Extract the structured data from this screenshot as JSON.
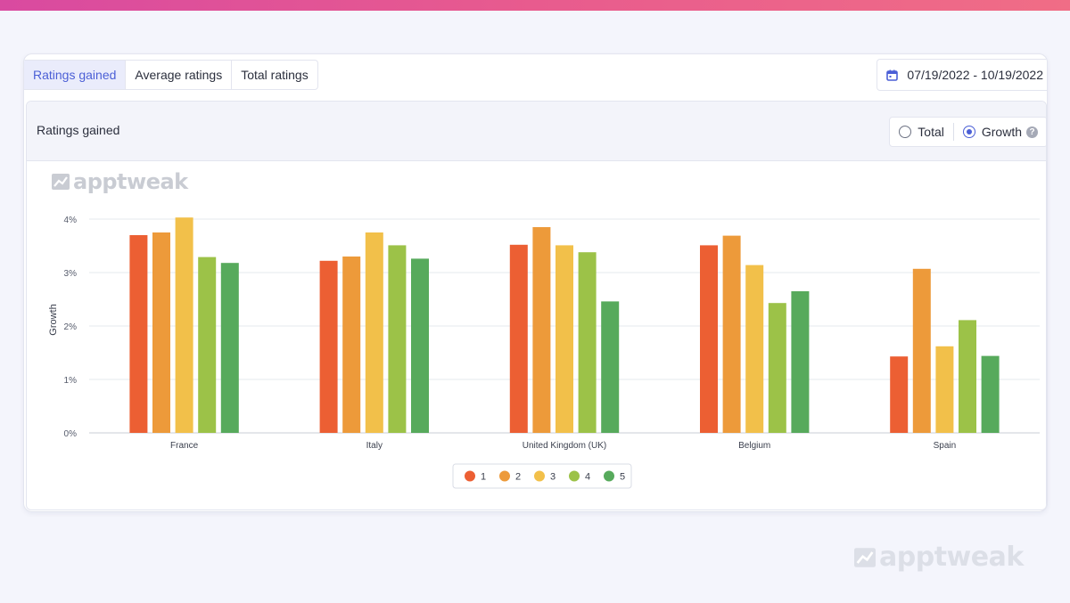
{
  "tabs": [
    {
      "label": "Ratings gained",
      "active": true
    },
    {
      "label": "Average ratings",
      "active": false
    },
    {
      "label": "Total ratings",
      "active": false
    }
  ],
  "date_range": {
    "label": "07/19/2022 - 10/19/2022",
    "icon": "calendar-icon"
  },
  "panel": {
    "title": "Ratings gained",
    "options": [
      {
        "label": "Total",
        "selected": false
      },
      {
        "label": "Growth",
        "selected": true
      }
    ],
    "help_icon": "?"
  },
  "watermark": {
    "text": "apptweak",
    "icon": "chart-trend-icon"
  },
  "colors": {
    "accent": "#4b5fd6",
    "series": [
      "#ec5f33",
      "#ed9a3a",
      "#f2c04a",
      "#9cc248",
      "#57aa5c"
    ]
  },
  "chart_data": {
    "type": "bar",
    "categories": [
      "France",
      "Italy",
      "United Kingdom (UK)",
      "Belgium",
      "Spain"
    ],
    "series": [
      {
        "name": "1",
        "values": [
          3.7,
          3.22,
          3.52,
          3.51,
          1.43
        ]
      },
      {
        "name": "2",
        "values": [
          3.75,
          3.3,
          3.85,
          3.69,
          3.07
        ]
      },
      {
        "name": "3",
        "values": [
          4.03,
          3.75,
          3.51,
          3.14,
          1.62
        ]
      },
      {
        "name": "4",
        "values": [
          3.29,
          3.51,
          3.38,
          2.43,
          2.11
        ]
      },
      {
        "name": "5",
        "values": [
          3.18,
          3.26,
          2.46,
          2.65,
          1.44
        ]
      }
    ],
    "ylabel": "Growth",
    "xlabel": "",
    "ylim": [
      0,
      4
    ],
    "yticks": [
      "0%",
      "1%",
      "2%",
      "3%",
      "4%"
    ],
    "grid": true,
    "legend": "bottom-center"
  }
}
